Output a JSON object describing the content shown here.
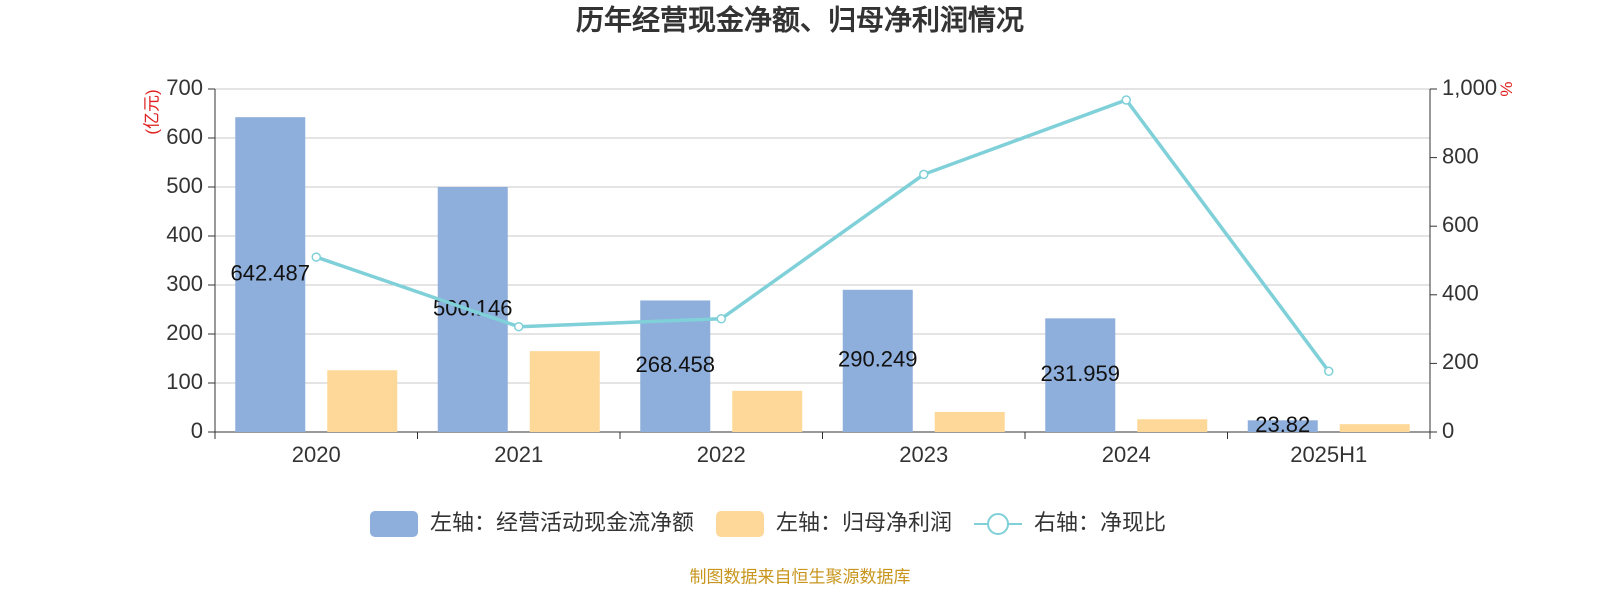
{
  "chart_data": {
    "type": "bar",
    "title": "历年经营现金净额、归母净利润情况",
    "categories": [
      "2020",
      "2021",
      "2022",
      "2023",
      "2024",
      "2025H1"
    ],
    "series": [
      {
        "name": "左轴：经营活动现金流净额",
        "type": "bar",
        "color": "#8eaedb",
        "show_labels": true,
        "values": [
          642.487,
          500.146,
          268.458,
          290.249,
          231.959,
          23.82
        ]
      },
      {
        "name": "左轴：归母净利润",
        "type": "bar",
        "color": "#fdd898",
        "values": [
          126,
          165,
          84,
          41,
          26,
          16
        ]
      },
      {
        "name": "右轴：净现比",
        "type": "line",
        "axis": "y2",
        "color": "#7fd0d8",
        "values": [
          510,
          307,
          330,
          751,
          968,
          177
        ]
      }
    ],
    "ylim": [
      0,
      700
    ],
    "yticks": [
      0,
      100,
      200,
      300,
      400,
      500,
      600,
      700
    ],
    "y2lim": [
      0,
      1000
    ],
    "y2ticks": [
      0,
      200,
      400,
      600,
      800,
      {
        "value": 1000,
        "label": "1,000"
      }
    ],
    "ylabel": "(亿元)",
    "y2label": "%",
    "label_color": "#e02020",
    "grid": true
  },
  "source": "制图数据来自恒生聚源数据库"
}
